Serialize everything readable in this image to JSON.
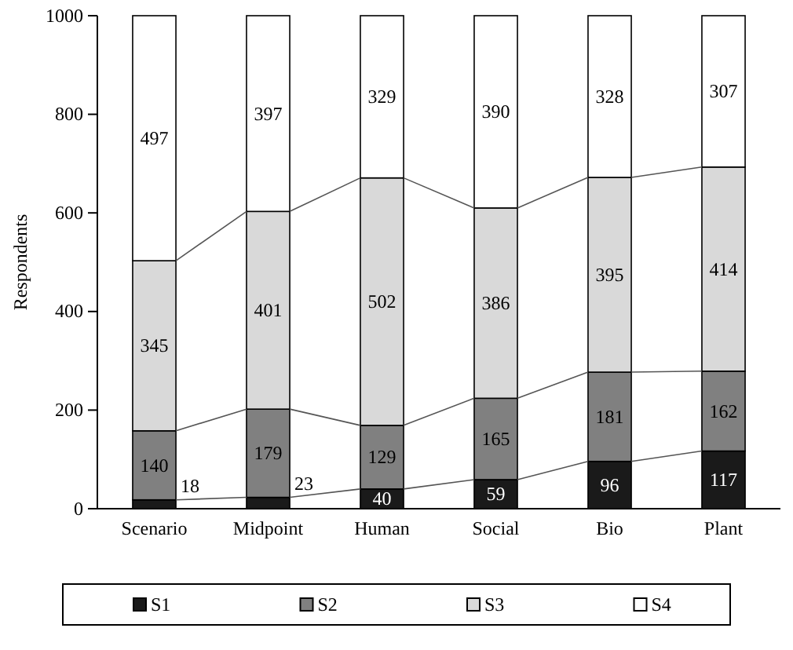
{
  "chart_data": {
    "type": "bar",
    "stacked": true,
    "ylabel": "Respondents",
    "categories": [
      "Scenario",
      "Midpoint",
      "Human",
      "Social",
      "Bio",
      "Plant"
    ],
    "series": [
      {
        "name": "S1",
        "color": "#1a1a1a",
        "values": [
          18,
          23,
          40,
          59,
          96,
          117
        ]
      },
      {
        "name": "S2",
        "color": "#808080",
        "values": [
          140,
          179,
          129,
          165,
          181,
          162
        ]
      },
      {
        "name": "S3",
        "color": "#d9d9d9",
        "values": [
          345,
          401,
          502,
          386,
          395,
          414
        ]
      },
      {
        "name": "S4",
        "color": "#ffffff",
        "values": [
          497,
          397,
          329,
          390,
          328,
          307
        ]
      }
    ],
    "ylim": [
      0,
      1000
    ],
    "yticks": [
      0,
      200,
      400,
      600,
      800,
      1000
    ],
    "data_labels": true,
    "legend": "bottom",
    "grid": false
  }
}
